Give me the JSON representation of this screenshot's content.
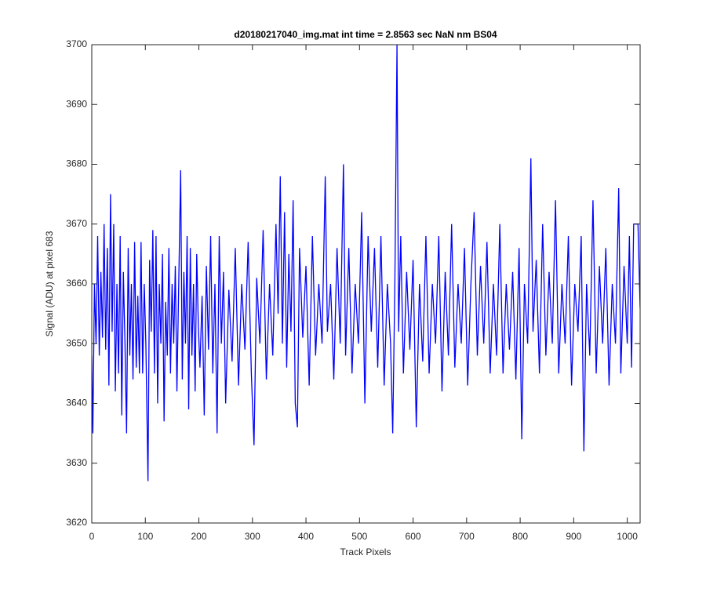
{
  "chart_data": {
    "type": "line",
    "title": "d20180217040_img.mat int time = 2.8563 sec  NaN nm BS04",
    "x_label": "Track Pixels",
    "y_label": "Signal (ADU) at pixel 683",
    "xlim": [
      0,
      1024
    ],
    "xticks": [
      0,
      100,
      200,
      300,
      400,
      500,
      600,
      700,
      800,
      900,
      1000
    ],
    "ylim": [
      3620,
      3700
    ],
    "yticks": [
      3620,
      3630,
      3640,
      3650,
      3660,
      3670,
      3680,
      3690,
      3700
    ],
    "x": [
      0,
      2,
      5,
      8,
      11,
      14,
      17,
      20,
      23,
      26,
      29,
      32,
      35,
      38,
      41,
      44,
      47,
      50,
      53,
      56,
      59,
      62,
      65,
      68,
      71,
      74,
      77,
      80,
      83,
      86,
      89,
      92,
      95,
      98,
      101,
      105,
      108,
      111,
      114,
      117,
      120,
      123,
      126,
      129,
      132,
      135,
      138,
      141,
      144,
      147,
      150,
      153,
      156,
      159,
      162,
      166,
      169,
      172,
      175,
      178,
      181,
      184,
      187,
      190,
      193,
      196,
      199,
      202,
      206,
      210,
      214,
      218,
      222,
      226,
      230,
      234,
      238,
      242,
      246,
      250,
      256,
      262,
      268,
      274,
      280,
      286,
      292,
      298,
      303,
      308,
      314,
      320,
      326,
      332,
      338,
      344,
      348,
      352,
      356,
      360,
      364,
      368,
      372,
      376,
      380,
      384,
      388,
      394,
      400,
      406,
      412,
      418,
      424,
      430,
      436,
      440,
      446,
      452,
      458,
      464,
      470,
      474,
      480,
      486,
      492,
      498,
      504,
      510,
      516,
      522,
      528,
      534,
      540,
      546,
      552,
      558,
      562,
      566,
      570,
      573,
      577,
      582,
      588,
      594,
      600,
      606,
      612,
      618,
      624,
      630,
      636,
      642,
      648,
      654,
      660,
      666,
      672,
      678,
      684,
      690,
      696,
      702,
      708,
      714,
      720,
      726,
      732,
      738,
      744,
      750,
      756,
      762,
      768,
      774,
      780,
      786,
      792,
      798,
      803,
      808,
      814,
      820,
      824,
      830,
      836,
      842,
      848,
      854,
      860,
      866,
      872,
      878,
      884,
      890,
      896,
      902,
      908,
      914,
      919,
      924,
      930,
      936,
      942,
      948,
      954,
      960,
      966,
      972,
      978,
      984,
      988,
      994,
      1000,
      1004,
      1008,
      1012,
      1016,
      1020,
      1024
    ],
    "series": [
      {
        "name": "signal",
        "color": "#0000ff",
        "values": [
          3648,
          3635,
          3660,
          3650,
          3668,
          3648,
          3662,
          3651,
          3670,
          3649,
          3666,
          3643,
          3675,
          3652,
          3670,
          3642,
          3660,
          3645,
          3668,
          3638,
          3662,
          3650,
          3635,
          3666,
          3648,
          3660,
          3644,
          3667,
          3646,
          3658,
          3645,
          3667,
          3645,
          3660,
          3650,
          3627,
          3664,
          3652,
          3669,
          3645,
          3668,
          3640,
          3660,
          3650,
          3665,
          3637,
          3657,
          3648,
          3666,
          3645,
          3660,
          3650,
          3663,
          3642,
          3658,
          3679,
          3644,
          3662,
          3650,
          3668,
          3639,
          3666,
          3648,
          3660,
          3642,
          3665,
          3653,
          3646,
          3658,
          3638,
          3663,
          3649,
          3668,
          3645,
          3660,
          3635,
          3668,
          3650,
          3662,
          3640,
          3659,
          3647,
          3666,
          3643,
          3660,
          3649,
          3667,
          3645,
          3633,
          3661,
          3650,
          3669,
          3644,
          3660,
          3648,
          3670,
          3655,
          3678,
          3650,
          3672,
          3646,
          3665,
          3652,
          3674,
          3640,
          3636,
          3666,
          3651,
          3663,
          3643,
          3668,
          3648,
          3660,
          3650,
          3678,
          3652,
          3660,
          3644,
          3666,
          3650,
          3680,
          3648,
          3666,
          3645,
          3660,
          3650,
          3672,
          3640,
          3668,
          3652,
          3666,
          3646,
          3668,
          3643,
          3660,
          3650,
          3635,
          3660,
          3700,
          3652,
          3668,
          3645,
          3662,
          3649,
          3664,
          3636,
          3660,
          3647,
          3668,
          3645,
          3660,
          3650,
          3668,
          3642,
          3662,
          3648,
          3670,
          3646,
          3660,
          3650,
          3666,
          3643,
          3660,
          3672,
          3648,
          3663,
          3650,
          3667,
          3645,
          3660,
          3648,
          3670,
          3645,
          3660,
          3649,
          3662,
          3644,
          3666,
          3634,
          3660,
          3650,
          3681,
          3652,
          3664,
          3645,
          3670,
          3648,
          3662,
          3650,
          3674,
          3645,
          3660,
          3650,
          3668,
          3643,
          3660,
          3652,
          3668,
          3632,
          3660,
          3648,
          3674,
          3645,
          3663,
          3650,
          3666,
          3643,
          3660,
          3650,
          3676,
          3645,
          3663,
          3650,
          3668,
          3646,
          3670,
          3670,
          3670,
          3656
        ]
      }
    ]
  }
}
